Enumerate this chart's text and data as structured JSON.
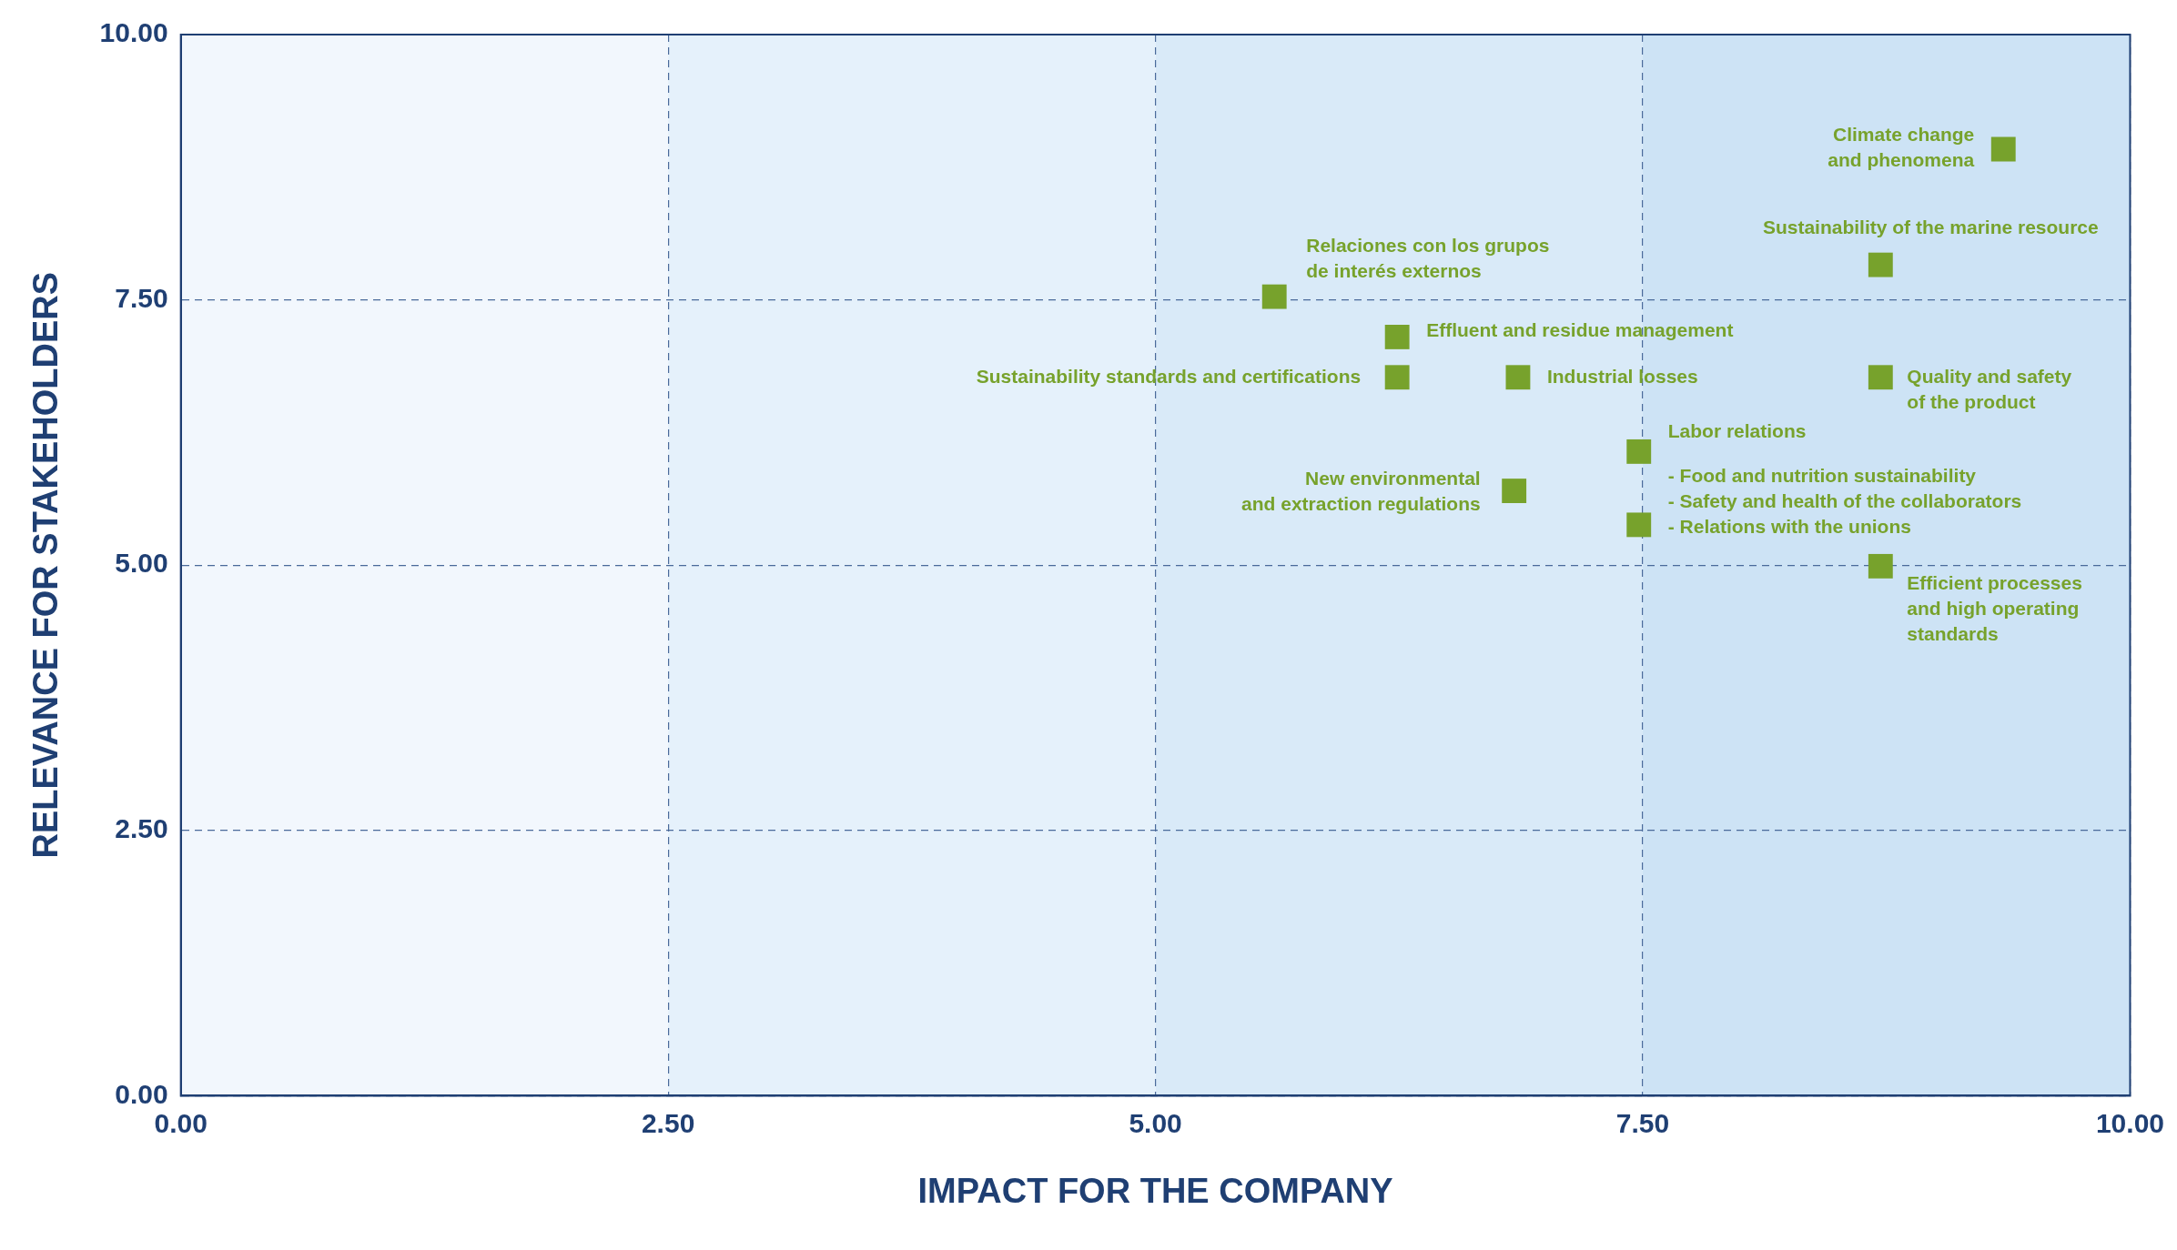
{
  "chart_data": {
    "type": "scatter",
    "xlabel": "IMPACT FOR THE COMPANY",
    "ylabel": "RELEVANCE FOR STAKEHOLDERS",
    "xlim": [
      0,
      10
    ],
    "ylim": [
      0,
      10
    ],
    "xticks": [
      {
        "value": 0,
        "label": "0.00"
      },
      {
        "value": 2.5,
        "label": "2.50"
      },
      {
        "value": 5,
        "label": "5.00"
      },
      {
        "value": 7.5,
        "label": "7.50"
      },
      {
        "value": 10,
        "label": "10.00"
      }
    ],
    "yticks": [
      {
        "value": 0,
        "label": "0.00"
      },
      {
        "value": 2.5,
        "label": "2.50"
      },
      {
        "value": 5,
        "label": "5.00"
      },
      {
        "value": 7.5,
        "label": "7.50"
      },
      {
        "value": 10,
        "label": "10.00"
      }
    ],
    "grid": true,
    "legend": false,
    "marker": "square",
    "bands": [
      {
        "axis": "x",
        "from": 0,
        "to": 2.5,
        "color": "#f2f7fd"
      },
      {
        "axis": "x",
        "from": 2.5,
        "to": 5,
        "color": "#e5f1fb"
      },
      {
        "axis": "x",
        "from": 5,
        "to": 7.5,
        "color": "#d9eaf8"
      },
      {
        "axis": "x",
        "from": 7.5,
        "to": 10,
        "color": "#cde3f5"
      }
    ],
    "series": [
      {
        "color": "#77a22c",
        "x": [
          9.35,
          8.72,
          5.61,
          6.24,
          6.24,
          6.86,
          8.72,
          7.48,
          6.84,
          7.48,
          8.72
        ],
        "values": [
          8.92,
          7.83,
          7.53,
          7.15,
          6.77,
          6.77,
          6.77,
          6.07,
          5.7,
          5.38,
          4.99
        ]
      }
    ],
    "annotations": [
      {
        "text": "Climate change\nand phenomena",
        "x": 9.35,
        "y": 8.92
      },
      {
        "text": "Sustainability of the marine resource",
        "x": 8.72,
        "y": 7.83
      },
      {
        "text": "Relaciones con los grupos\nde interés externos",
        "x": 5.61,
        "y": 7.53
      },
      {
        "text": "Effluent and residue management",
        "x": 6.24,
        "y": 7.15
      },
      {
        "text": "Sustainability standards and certifications",
        "x": 6.24,
        "y": 6.77
      },
      {
        "text": "Industrial losses",
        "x": 6.86,
        "y": 6.77
      },
      {
        "text": "Quality and safety\nof the product",
        "x": 8.72,
        "y": 6.77
      },
      {
        "text": "Labor relations",
        "x": 7.48,
        "y": 6.07
      },
      {
        "text": "New environmental\nand extraction regulations",
        "x": 6.84,
        "y": 5.7
      },
      {
        "text": "- Food and nutrition sustainability\n- Safety and health of the collaborators\n- Relations with the unions",
        "x": 7.48,
        "y": 5.38
      },
      {
        "text": "Efficient processes\nand high operating\nstandards",
        "x": 8.72,
        "y": 4.99
      }
    ]
  }
}
